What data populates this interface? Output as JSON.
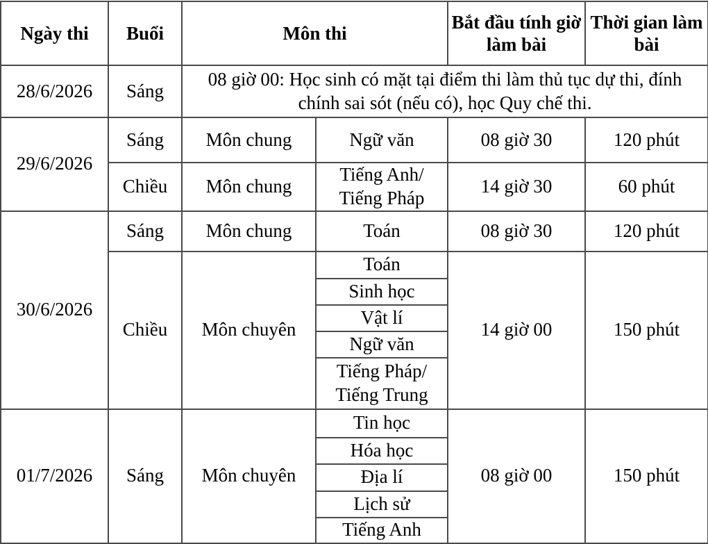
{
  "headers": {
    "date": "Ngày thi",
    "session": "Buổi",
    "subject": "Môn thi",
    "start": "Bắt đầu tính giờ làm bài",
    "duration": "Thời gian làm bài"
  },
  "day1": {
    "date": "28/6/2026",
    "session": "Sáng",
    "note": "08 giờ 00: Học sinh có mặt tại điểm thi làm thủ tục dự thi, đính chính sai sót (nếu có), học Quy chế thi."
  },
  "day2": {
    "date": "29/6/2026",
    "rows": [
      {
        "session": "Sáng",
        "type": "Môn chung",
        "subject": "Ngữ văn",
        "start": "08 giờ 30",
        "duration": "120 phút"
      },
      {
        "session": "Chiều",
        "type": "Môn chung",
        "subject": "Tiếng Anh/ Tiếng Pháp",
        "start": "14 giờ 30",
        "duration": "60 phút"
      }
    ]
  },
  "day3": {
    "date": "30/6/2026",
    "morning": {
      "session": "Sáng",
      "type": "Môn chung",
      "subject": "Toán",
      "start": "08 giờ 30",
      "duration": "120 phút"
    },
    "afternoon": {
      "session": "Chiều",
      "type": "Môn chuyên",
      "subjects": [
        "Toán",
        "Sinh học",
        "Vật lí",
        "Ngữ văn",
        "Tiếng Pháp/ Tiếng Trung"
      ],
      "start": "14 giờ 00",
      "duration": "150 phút"
    }
  },
  "day4": {
    "date": "01/7/2026",
    "session": "Sáng",
    "type": "Môn chuyên",
    "subjects": [
      "Tin học",
      "Hóa học",
      "Địa lí",
      "Lịch sử",
      "Tiếng Anh"
    ],
    "start": "08 giờ 00",
    "duration": "150 phút"
  }
}
